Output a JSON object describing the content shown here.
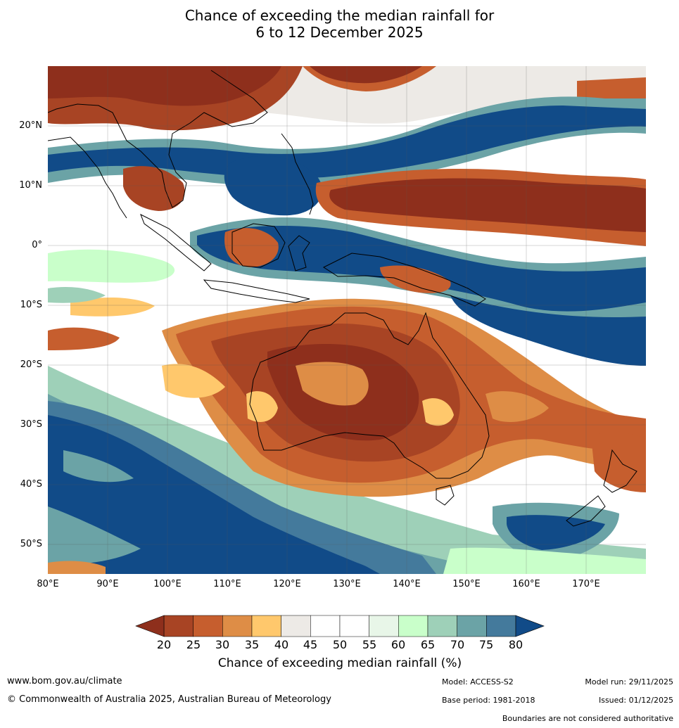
{
  "header": {
    "title_line1": "Chance of exceeding the median rainfall for",
    "title_line2": "6 to 12 December 2025"
  },
  "map": {
    "lat_labels": [
      "20°N",
      "10°N",
      "0°",
      "10°S",
      "20°S",
      "30°S",
      "40°S",
      "50°S"
    ],
    "lon_labels": [
      "80°E",
      "90°E",
      "100°E",
      "110°E",
      "120°E",
      "130°E",
      "140°E",
      "150°E",
      "160°E",
      "170°E"
    ],
    "extent": {
      "lon": [
        80,
        180
      ],
      "lat": [
        -55,
        30
      ]
    }
  },
  "colorbar": {
    "ticks": [
      "20",
      "25",
      "30",
      "35",
      "40",
      "45",
      "50",
      "55",
      "60",
      "65",
      "70",
      "75",
      "80"
    ],
    "colors": [
      "#8e2f1c",
      "#a84424",
      "#c65e2e",
      "#de8d46",
      "#ffc86c",
      "#edeae6",
      "#ffffff",
      "#ffffff",
      "#e8f6e8",
      "#c9ffca",
      "#9ed0b8",
      "#6ba3a6",
      "#447a9c",
      "#114b88"
    ],
    "label": "Chance of exceeding median rainfall (%)"
  },
  "footer": {
    "website": "www.bom.gov.au/climate",
    "copyright": "© Commonwealth of Australia 2025, Australian Bureau of Meteorology",
    "model": "Model: ACCESS-S2",
    "base_period": "Base period: 1981-2018",
    "model_run": "Model run: 29/11/2025",
    "issued": "Issued: 01/12/2025",
    "disclaimer": "Boundaries are not considered authoritative"
  }
}
